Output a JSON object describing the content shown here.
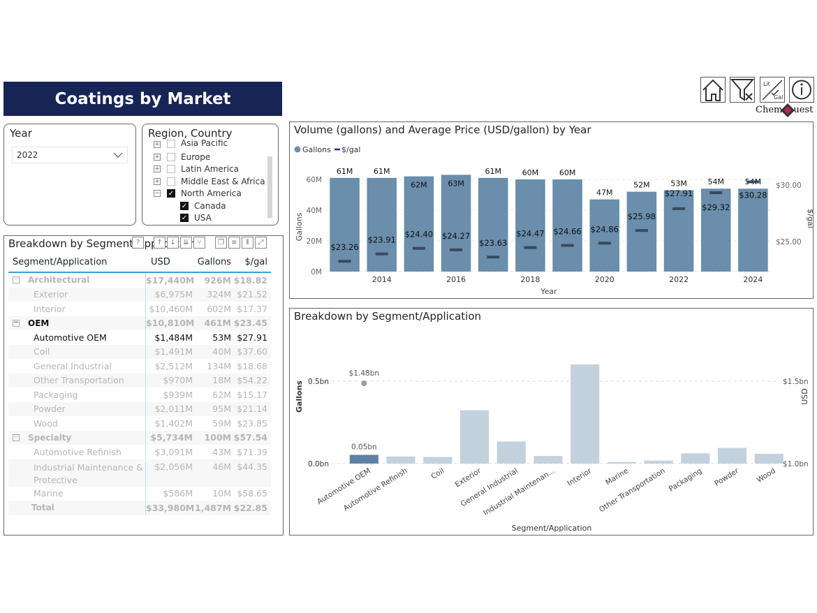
{
  "header": {
    "title": "Coatings by Market"
  },
  "nav": {
    "home_label": "Home",
    "clear_filters_label": "Clear filters",
    "units_label_top": "Lit",
    "units_label_bottom": "Gal",
    "info_label": "i",
    "logo_left": "Chem",
    "logo_right": "uest"
  },
  "year_slicer": {
    "title": "Year",
    "selected": "2022"
  },
  "region_slicer": {
    "title": "Region, Country",
    "items": [
      {
        "label": "Asia Pacific",
        "expander": "+",
        "checked": false
      },
      {
        "label": "Europe",
        "expander": "+",
        "checked": false
      },
      {
        "label": "Latin America",
        "expander": "+",
        "checked": false
      },
      {
        "label": "Middle East & Africa",
        "expander": "+",
        "checked": false
      },
      {
        "label": "North America",
        "expander": "−",
        "checked": true
      },
      {
        "label": "Canada",
        "checked": true
      },
      {
        "label": "USA",
        "checked": true
      }
    ]
  },
  "table": {
    "title": "Breakdown by Segment/Application",
    "toolbar": [
      "?",
      "↑",
      "↓",
      "⇊",
      "⑂",
      "❐",
      "≡",
      "⫴",
      "⤢"
    ],
    "headers": [
      "Segment/Application",
      "USD",
      "Gallons",
      "$/gal"
    ],
    "rows": [
      {
        "name": "Architectural",
        "usd": "$17,440M",
        "gallons": "926M",
        "ppg": "$18.82",
        "type": "group",
        "expander": "−"
      },
      {
        "name": "Exterior",
        "usd": "$6,975M",
        "gallons": "324M",
        "ppg": "$21.52",
        "type": "sub"
      },
      {
        "name": "Interior",
        "usd": "$10,460M",
        "gallons": "602M",
        "ppg": "$17.37",
        "type": "sub"
      },
      {
        "name": "OEM",
        "usd": "$10,810M",
        "gallons": "461M",
        "ppg": "$23.45",
        "type": "group",
        "expander": "−"
      },
      {
        "name": "Automotive OEM",
        "usd": "$1,484M",
        "gallons": "53M",
        "ppg": "$27.91",
        "type": "sub",
        "selected": true
      },
      {
        "name": "Coil",
        "usd": "$1,491M",
        "gallons": "40M",
        "ppg": "$37.60",
        "type": "sub"
      },
      {
        "name": "General Industrial",
        "usd": "$2,512M",
        "gallons": "134M",
        "ppg": "$18.68",
        "type": "sub"
      },
      {
        "name": "Other Transportation",
        "usd": "$970M",
        "gallons": "18M",
        "ppg": "$54.22",
        "type": "sub"
      },
      {
        "name": "Packaging",
        "usd": "$939M",
        "gallons": "62M",
        "ppg": "$15.17",
        "type": "sub"
      },
      {
        "name": "Powder",
        "usd": "$2,011M",
        "gallons": "95M",
        "ppg": "$21.14",
        "type": "sub"
      },
      {
        "name": "Wood",
        "usd": "$1,402M",
        "gallons": "59M",
        "ppg": "$23.85",
        "type": "sub"
      },
      {
        "name": "Specialty",
        "usd": "$5,734M",
        "gallons": "100M",
        "ppg": "$57.54",
        "type": "group",
        "expander": "−"
      },
      {
        "name": "Automotive Refinish",
        "usd": "$3,091M",
        "gallons": "43M",
        "ppg": "$71.39",
        "type": "sub"
      },
      {
        "name": "Industrial Maintenance & Protective",
        "usd": "$2,056M",
        "gallons": "46M",
        "ppg": "$44.35",
        "type": "sub",
        "tall": true
      },
      {
        "name": "Marine",
        "usd": "$586M",
        "gallons": "10M",
        "ppg": "$58.65",
        "type": "sub"
      },
      {
        "name": "Total",
        "usd": "$33,980M",
        "gallons": "1,487M",
        "ppg": "$22.85",
        "type": "total"
      }
    ]
  },
  "chart_data": [
    {
      "type": "bar",
      "title": "Volume (gallons) and Average Price (USD/gallon) by Year",
      "legend": [
        "Gallons",
        "$/gal"
      ],
      "legend_position": "top-left",
      "xlabel": "Year",
      "ylabel": "Gallons",
      "y2label": "$/gal",
      "categories": [
        2013,
        2014,
        2015,
        2016,
        2017,
        2018,
        2019,
        2020,
        2021,
        2022,
        2023,
        2024
      ],
      "x_tick_labels": [
        "2014",
        "2016",
        "2018",
        "2020",
        "2022",
        "2024"
      ],
      "y_ticks": [
        "0M",
        "20M",
        "40M",
        "60M"
      ],
      "y2_ticks": [
        "$25.00",
        "$30.00"
      ],
      "ylim": [
        0,
        60
      ],
      "y2lim": [
        21.9,
        30.0
      ],
      "grid": true,
      "series": [
        {
          "name": "Gallons",
          "unit": "M",
          "values": [
            61,
            61,
            62,
            63,
            61,
            60,
            60,
            47,
            52,
            53,
            54,
            54
          ],
          "labels": [
            "61M",
            "61M",
            "62M",
            "63M",
            "61M",
            "60M",
            "60M",
            "47M",
            "52M",
            "53M",
            "54M",
            "54M"
          ]
        },
        {
          "name": "$/gal",
          "values": [
            23.26,
            23.91,
            24.4,
            24.27,
            23.63,
            24.47,
            24.66,
            24.86,
            25.98,
            27.91,
            29.32,
            30.28
          ],
          "labels": [
            "$23.26",
            "$23.91",
            "$24.40",
            "$24.27",
            "$23.63",
            "$24.47",
            "$24.66",
            "$24.86",
            "$25.98",
            "$27.91",
            "$29.32",
            "$30.28"
          ]
        }
      ],
      "colors": {
        "bar": "#6a8eab",
        "marker": "#3a4a5c"
      }
    },
    {
      "type": "bar",
      "title": "Breakdown by Segment/Application",
      "xlabel": "Segment/Application",
      "ylabel": "Gallons",
      "y2label": "USD",
      "categories": [
        "Automotive OEM",
        "Automotive Refinish",
        "Coil",
        "Exterior",
        "General Industrial",
        "Industrial Maintenan...",
        "Interior",
        "Marine",
        "Other Transportation",
        "Packaging",
        "Powder",
        "Wood"
      ],
      "y_ticks": [
        "0.0bn",
        "0.5bn"
      ],
      "y2_ticks": [
        "$1.0bn",
        "$1.5bn"
      ],
      "ylim": [
        0,
        0.5
      ],
      "y2lim": [
        1.0,
        1.5
      ],
      "grid": true,
      "series": [
        {
          "name": "Gallons",
          "unit": "bn",
          "values": [
            0.053,
            0.043,
            0.04,
            0.324,
            0.134,
            0.046,
            0.602,
            0.01,
            0.018,
            0.062,
            0.095,
            0.059
          ]
        },
        {
          "name": "USD",
          "unit": "bn",
          "values": [
            1.48
          ],
          "point_label": "$1.48bn"
        }
      ],
      "highlighted": "Automotive OEM",
      "highlight_label": "0.05bn",
      "colors": {
        "highlight": "#5f82a2",
        "bar": "#c3d1dd",
        "point": "#a09a98"
      }
    }
  ]
}
